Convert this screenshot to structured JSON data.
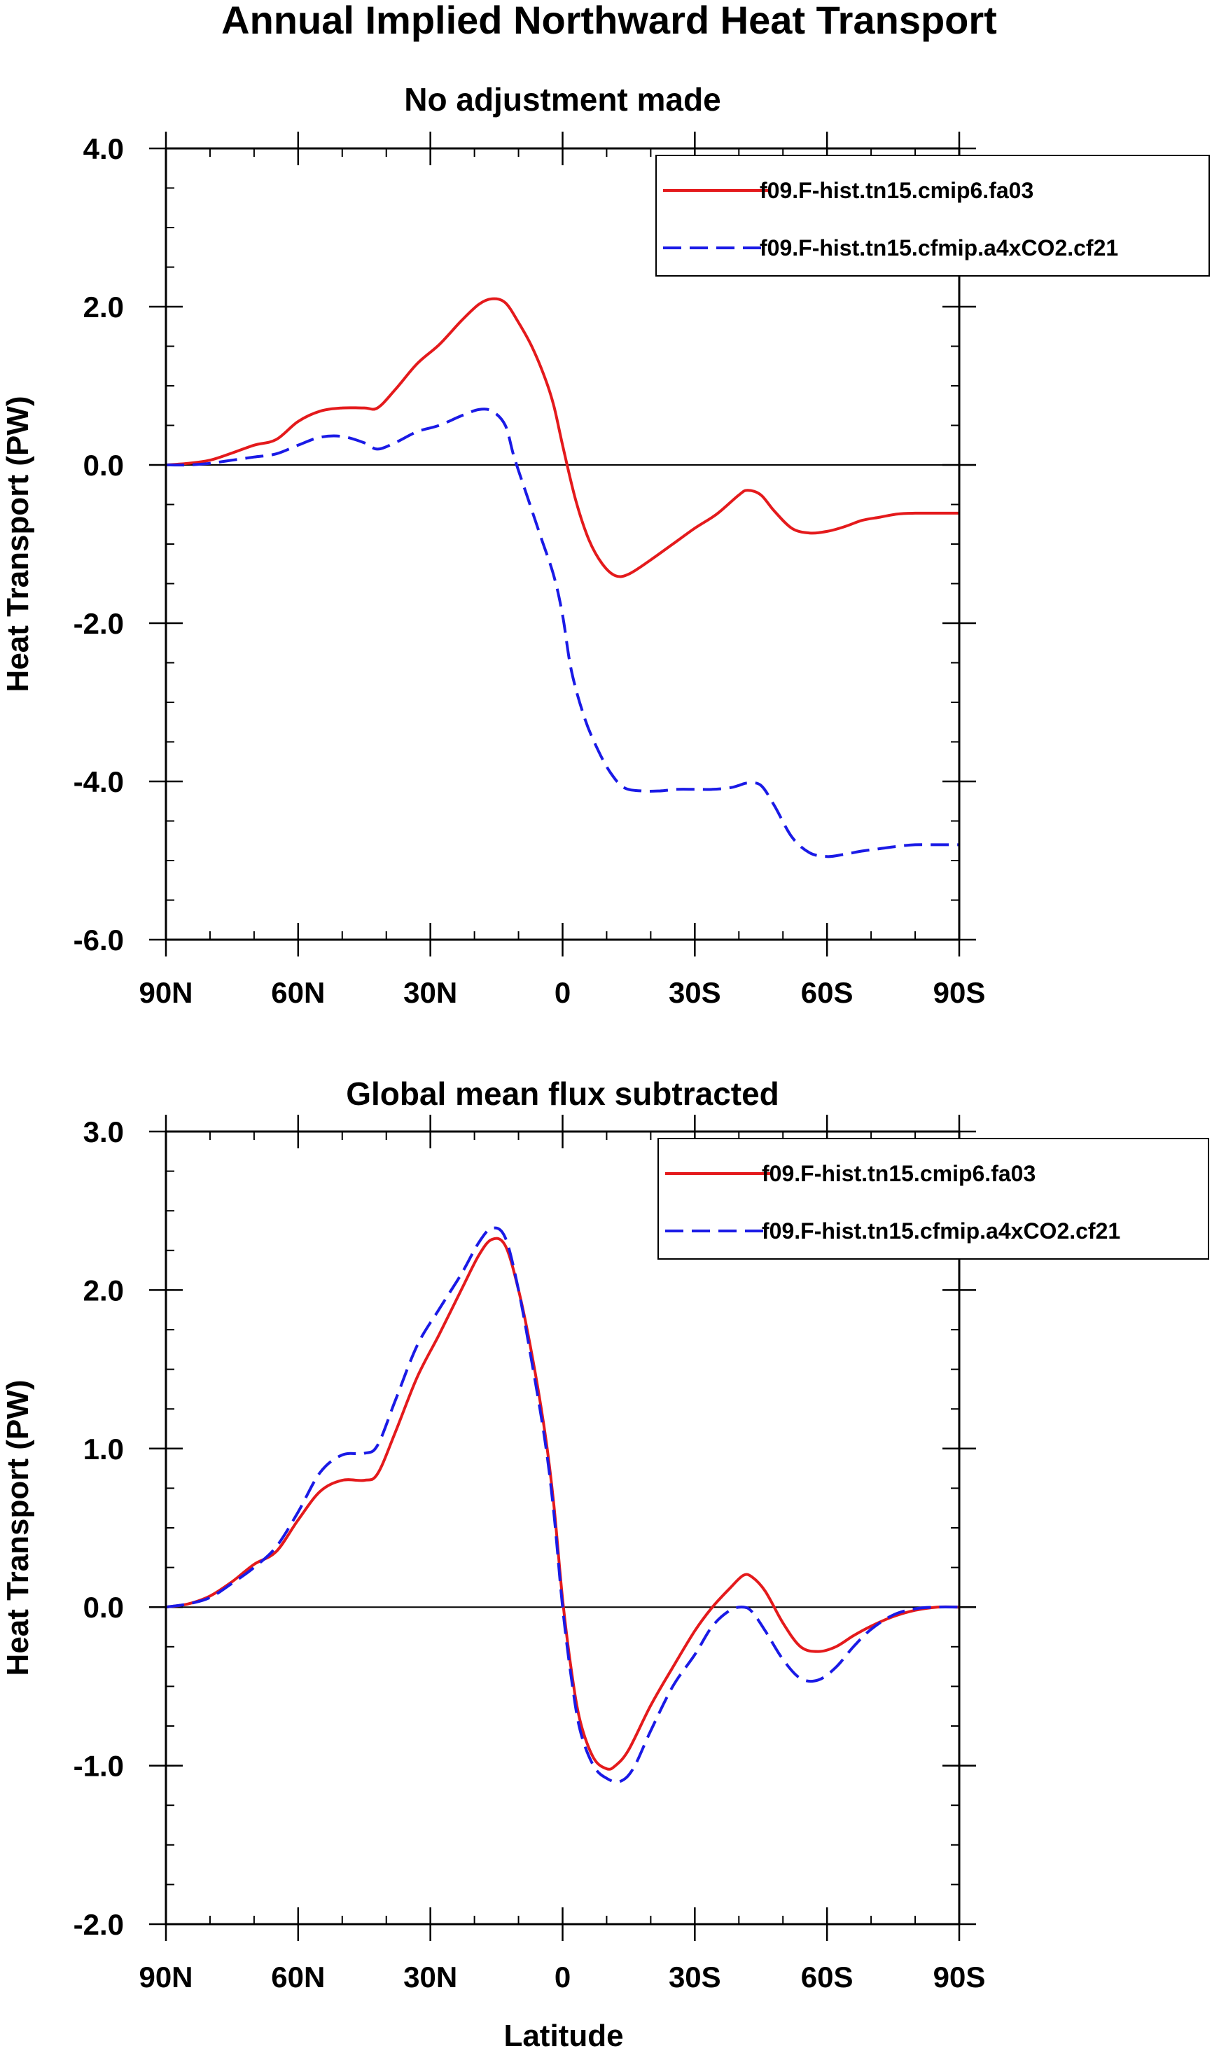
{
  "title": "Annual Implied Northward Heat Transport",
  "xlabel": "Latitude",
  "series_names": [
    "f09.F-hist.tn15.cmip6.fa03",
    "f09.F-hist.tn15.cfmip.a4xCO2.cf21"
  ],
  "colors": {
    "series1": "#e41a1c",
    "series2": "#1a1ae6",
    "axis": "#000000"
  },
  "chart_data": [
    {
      "type": "line",
      "title": "No adjustment made",
      "xlabel": "",
      "ylabel": "Heat Transport (PW)",
      "xlim": [
        90,
        -90
      ],
      "ylim": [
        -6,
        4
      ],
      "x_ticks": [
        90,
        60,
        30,
        0,
        -30,
        -60,
        -90
      ],
      "x_tick_labels": [
        "90N",
        "60N",
        "30N",
        "0",
        "30S",
        "60S",
        "90S"
      ],
      "y_ticks": [
        4,
        2,
        0,
        -2,
        -4,
        -6
      ],
      "y_tick_labels": [
        "4.0",
        "2.0",
        "0.0",
        "-2.0",
        "-4.0",
        "-6.0"
      ],
      "legend": "top-right",
      "series": [
        {
          "name": "f09.F-hist.tn15.cmip6.fa03",
          "style": "solid",
          "x": [
            90,
            85,
            80,
            75,
            70,
            65,
            60,
            55,
            50,
            45,
            42,
            38,
            33,
            28,
            23,
            19,
            16,
            13,
            10,
            7,
            4,
            2,
            0,
            -3,
            -6,
            -9,
            -12,
            -15,
            -20,
            -25,
            -30,
            -35,
            -40,
            -42,
            -45,
            -48,
            -52,
            -56,
            -60,
            -64,
            -68,
            -72,
            -76,
            -80,
            -85,
            -90
          ],
          "values": [
            0,
            0.02,
            0.06,
            0.15,
            0.25,
            0.32,
            0.55,
            0.68,
            0.72,
            0.72,
            0.72,
            0.95,
            1.28,
            1.52,
            1.82,
            2.03,
            2.1,
            2.05,
            1.8,
            1.5,
            1.1,
            0.75,
            0.25,
            -0.45,
            -0.95,
            -1.25,
            -1.4,
            -1.38,
            -1.2,
            -1.0,
            -0.8,
            -0.62,
            -0.38,
            -0.32,
            -0.38,
            -0.58,
            -0.8,
            -0.86,
            -0.84,
            -0.78,
            -0.7,
            -0.66,
            -0.62,
            -0.61,
            -0.61,
            -0.61
          ]
        },
        {
          "name": "f09.F-hist.tn15.cfmip.a4xCO2.cf21",
          "style": "dashed",
          "x": [
            90,
            85,
            80,
            75,
            70,
            65,
            60,
            55,
            50,
            45,
            42,
            38,
            33,
            28,
            23,
            19,
            16,
            13,
            11,
            8,
            5,
            2,
            0,
            -2,
            -5,
            -8,
            -11,
            -14,
            -18,
            -22,
            -26,
            -30,
            -34,
            -38,
            -40,
            -42,
            -45,
            -48,
            -52,
            -56,
            -60,
            -64,
            -68,
            -72,
            -76,
            -80,
            -85,
            -90
          ],
          "values": [
            0,
            0.0,
            0.02,
            0.06,
            0.1,
            0.14,
            0.25,
            0.35,
            0.36,
            0.28,
            0.2,
            0.28,
            0.42,
            0.5,
            0.62,
            0.7,
            0.68,
            0.5,
            0.1,
            -0.4,
            -0.9,
            -1.4,
            -1.9,
            -2.6,
            -3.2,
            -3.6,
            -3.9,
            -4.08,
            -4.12,
            -4.12,
            -4.1,
            -4.1,
            -4.1,
            -4.08,
            -4.05,
            -4.02,
            -4.05,
            -4.3,
            -4.7,
            -4.9,
            -4.95,
            -4.92,
            -4.88,
            -4.85,
            -4.82,
            -4.8,
            -4.8,
            -4.8
          ]
        }
      ]
    },
    {
      "type": "line",
      "title": "Global mean flux subtracted",
      "xlabel": "Latitude",
      "ylabel": "Heat Transport (PW)",
      "xlim": [
        90,
        -90
      ],
      "ylim": [
        -2,
        3
      ],
      "x_ticks": [
        90,
        60,
        30,
        0,
        -30,
        -60,
        -90
      ],
      "x_tick_labels": [
        "90N",
        "60N",
        "30N",
        "0",
        "30S",
        "60S",
        "90S"
      ],
      "y_ticks": [
        3,
        2,
        1,
        0,
        -1,
        -2
      ],
      "y_tick_labels": [
        "3.0",
        "2.0",
        "1.0",
        "0.0",
        "-1.0",
        "-2.0"
      ],
      "legend": "top-right",
      "series": [
        {
          "name": "f09.F-hist.tn15.cmip6.fa03",
          "style": "solid",
          "x": [
            90,
            85,
            80,
            75,
            70,
            65,
            60,
            55,
            50,
            45,
            42,
            38,
            33,
            28,
            23,
            19,
            16,
            13,
            10,
            7,
            4,
            2,
            0,
            -2,
            -4,
            -7,
            -10,
            -12,
            -15,
            -20,
            -25,
            -30,
            -34,
            -38,
            -41,
            -43,
            -46,
            -50,
            -54,
            -58,
            -62,
            -66,
            -70,
            -75,
            -80,
            -85,
            -90
          ],
          "values": [
            0,
            0.02,
            0.07,
            0.16,
            0.27,
            0.35,
            0.55,
            0.73,
            0.8,
            0.8,
            0.84,
            1.1,
            1.45,
            1.72,
            2.0,
            2.22,
            2.32,
            2.28,
            2.0,
            1.6,
            1.1,
            0.65,
            0.05,
            -0.4,
            -0.72,
            -0.95,
            -1.02,
            -1.0,
            -0.9,
            -0.62,
            -0.38,
            -0.15,
            0.0,
            0.12,
            0.2,
            0.19,
            0.1,
            -0.1,
            -0.25,
            -0.28,
            -0.25,
            -0.18,
            -0.12,
            -0.06,
            -0.02,
            0.0,
            0.0
          ]
        },
        {
          "name": "f09.F-hist.tn15.cfmip.a4xCO2.cf21",
          "style": "dashed",
          "x": [
            90,
            85,
            80,
            75,
            70,
            65,
            60,
            55,
            50,
            45,
            42,
            38,
            33,
            28,
            23,
            19,
            16,
            13,
            10,
            7,
            4,
            2,
            0,
            -2,
            -4,
            -7,
            -10,
            -13,
            -16,
            -20,
            -25,
            -30,
            -34,
            -38,
            -41,
            -43,
            -46,
            -50,
            -54,
            -58,
            -62,
            -66,
            -70,
            -75,
            -80,
            -85,
            -90
          ],
          "values": [
            0,
            0.02,
            0.06,
            0.15,
            0.25,
            0.38,
            0.6,
            0.85,
            0.96,
            0.97,
            1.02,
            1.3,
            1.65,
            1.88,
            2.1,
            2.3,
            2.39,
            2.33,
            2.0,
            1.55,
            1.05,
            0.6,
            0.0,
            -0.45,
            -0.78,
            -1.0,
            -1.08,
            -1.1,
            -1.02,
            -0.78,
            -0.5,
            -0.3,
            -0.12,
            -0.02,
            0.0,
            -0.03,
            -0.15,
            -0.33,
            -0.45,
            -0.46,
            -0.38,
            -0.25,
            -0.14,
            -0.05,
            -0.01,
            0.0,
            0.0
          ]
        }
      ]
    }
  ]
}
